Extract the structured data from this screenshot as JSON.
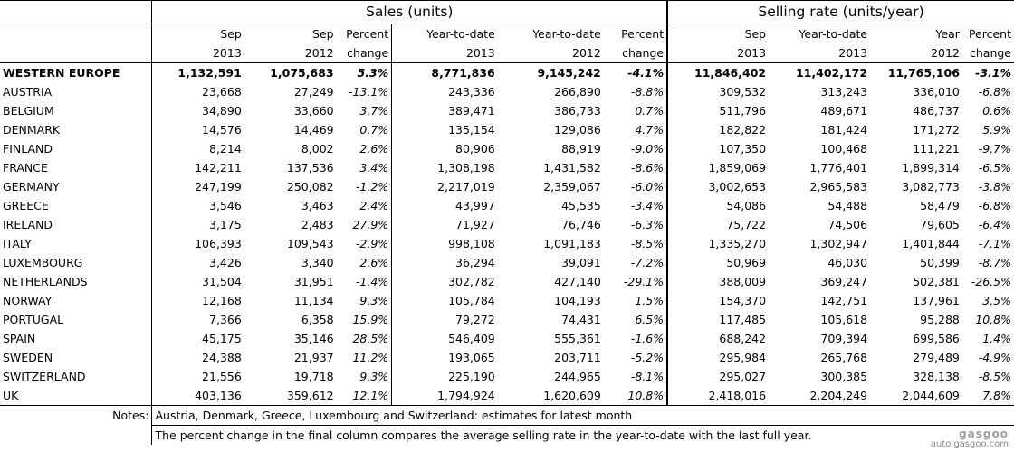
{
  "groups": {
    "sales": "Sales (units)",
    "selling_rate": "Selling rate (units/year)"
  },
  "columns": [
    {
      "l1": "Sep",
      "l2": "2013"
    },
    {
      "l1": "Sep",
      "l2": "2012"
    },
    {
      "l1": "Percent",
      "l2": "change"
    },
    {
      "l1": "Year-to-date",
      "l2": "2013"
    },
    {
      "l1": "Year-to-date",
      "l2": "2012"
    },
    {
      "l1": "Percent",
      "l2": "change"
    },
    {
      "l1": "Sep",
      "l2": "2013"
    },
    {
      "l1": "Year-to-date",
      "l2": "2013"
    },
    {
      "l1": "Year",
      "l2": "2012"
    },
    {
      "l1": "Percent",
      "l2": "change"
    }
  ],
  "rows": [
    {
      "label": "WESTERN EUROPE",
      "cells": [
        "1,132,591",
        "1,075,683",
        "5.3%",
        "8,771,836",
        "9,145,242",
        "-4.1%",
        "11,846,402",
        "11,402,172",
        "11,765,106",
        "-3.1%"
      ]
    },
    {
      "label": "AUSTRIA",
      "cells": [
        "23,668",
        "27,249",
        "-13.1%",
        "243,336",
        "266,890",
        "-8.8%",
        "309,532",
        "313,243",
        "336,010",
        "-6.8%"
      ]
    },
    {
      "label": "BELGIUM",
      "cells": [
        "34,890",
        "33,660",
        "3.7%",
        "389,471",
        "386,733",
        "0.7%",
        "511,796",
        "489,671",
        "486,737",
        "0.6%"
      ]
    },
    {
      "label": "DENMARK",
      "cells": [
        "14,576",
        "14,469",
        "0.7%",
        "135,154",
        "129,086",
        "4.7%",
        "182,822",
        "181,424",
        "171,272",
        "5.9%"
      ]
    },
    {
      "label": "FINLAND",
      "cells": [
        "8,214",
        "8,002",
        "2.6%",
        "80,906",
        "88,919",
        "-9.0%",
        "107,350",
        "100,468",
        "111,221",
        "-9.7%"
      ]
    },
    {
      "label": "FRANCE",
      "cells": [
        "142,211",
        "137,536",
        "3.4%",
        "1,308,198",
        "1,431,582",
        "-8.6%",
        "1,859,069",
        "1,776,401",
        "1,899,314",
        "-6.5%"
      ]
    },
    {
      "label": "GERMANY",
      "cells": [
        "247,199",
        "250,082",
        "-1.2%",
        "2,217,019",
        "2,359,067",
        "-6.0%",
        "3,002,653",
        "2,965,583",
        "3,082,773",
        "-3.8%"
      ]
    },
    {
      "label": "GREECE",
      "cells": [
        "3,546",
        "3,463",
        "2.4%",
        "43,997",
        "45,535",
        "-3.4%",
        "54,086",
        "54,488",
        "58,479",
        "-6.8%"
      ]
    },
    {
      "label": "IRELAND",
      "cells": [
        "3,175",
        "2,483",
        "27.9%",
        "71,927",
        "76,746",
        "-6.3%",
        "75,722",
        "74,506",
        "79,605",
        "-6.4%"
      ]
    },
    {
      "label": "ITALY",
      "cells": [
        "106,393",
        "109,543",
        "-2.9%",
        "998,108",
        "1,091,183",
        "-8.5%",
        "1,335,270",
        "1,302,947",
        "1,401,844",
        "-7.1%"
      ]
    },
    {
      "label": "LUXEMBOURG",
      "cells": [
        "3,426",
        "3,340",
        "2.6%",
        "36,294",
        "39,091",
        "-7.2%",
        "50,969",
        "46,030",
        "50,399",
        "-8.7%"
      ]
    },
    {
      "label": "NETHERLANDS",
      "cells": [
        "31,504",
        "31,951",
        "-1.4%",
        "302,782",
        "427,140",
        "-29.1%",
        "388,009",
        "369,247",
        "502,381",
        "-26.5%"
      ]
    },
    {
      "label": "NORWAY",
      "cells": [
        "12,168",
        "11,134",
        "9.3%",
        "105,784",
        "104,193",
        "1.5%",
        "154,370",
        "142,751",
        "137,961",
        "3.5%"
      ]
    },
    {
      "label": "PORTUGAL",
      "cells": [
        "7,366",
        "6,358",
        "15.9%",
        "79,272",
        "74,431",
        "6.5%",
        "117,485",
        "105,618",
        "95,288",
        "10.8%"
      ]
    },
    {
      "label": "SPAIN",
      "cells": [
        "45,175",
        "35,146",
        "28.5%",
        "546,409",
        "555,361",
        "-1.6%",
        "688,242",
        "709,394",
        "699,586",
        "1.4%"
      ]
    },
    {
      "label": "SWEDEN",
      "cells": [
        "24,388",
        "21,937",
        "11.2%",
        "193,065",
        "203,711",
        "-5.2%",
        "295,984",
        "265,768",
        "279,489",
        "-4.9%"
      ]
    },
    {
      "label": "SWITZERLAND",
      "cells": [
        "21,556",
        "19,718",
        "9.3%",
        "225,190",
        "244,965",
        "-8.1%",
        "295,027",
        "300,385",
        "328,138",
        "-8.5%"
      ]
    },
    {
      "label": "UK",
      "cells": [
        "403,136",
        "359,612",
        "12.1%",
        "1,794,924",
        "1,620,609",
        "10.8%",
        "2,418,016",
        "2,204,249",
        "2,044,609",
        "7.8%"
      ]
    }
  ],
  "notes": {
    "label": "Notes:",
    "line1": "Austria, Denmark, Greece, Luxembourg and Switzerland: estimates for latest month",
    "line2": "The percent change in the final column compares the average selling rate in the year-to-date with the last full year."
  },
  "watermark": {
    "logo": "gasgoo",
    "url": "auto.gasgoo.com"
  }
}
